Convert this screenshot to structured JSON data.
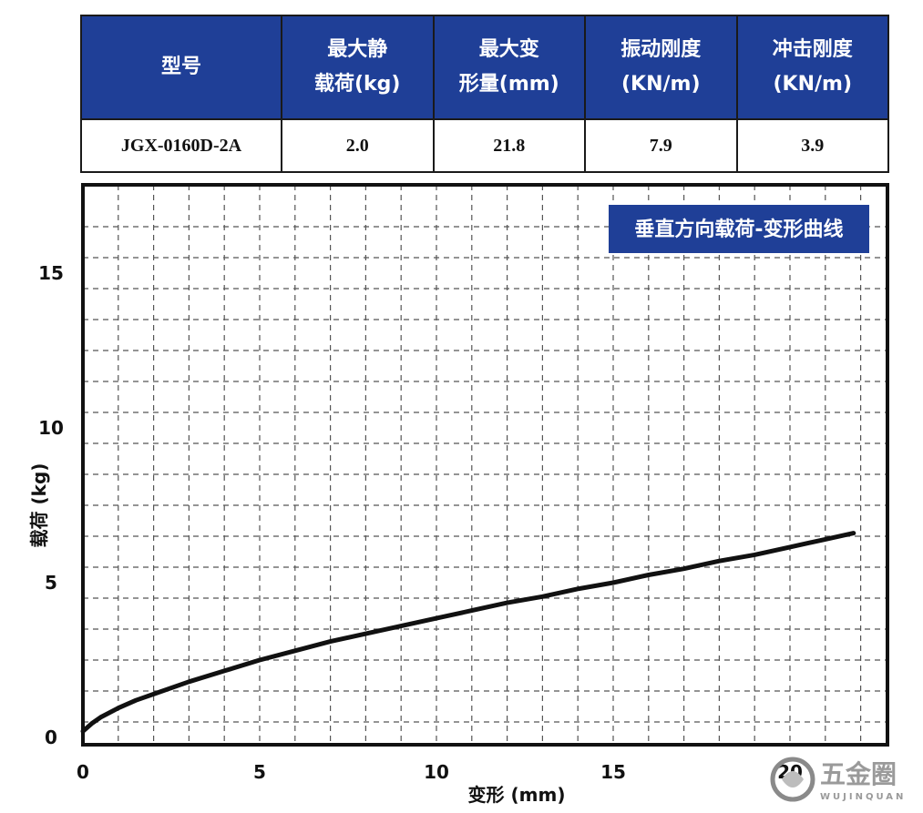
{
  "table": {
    "headers": [
      [
        "型号"
      ],
      [
        "最大静",
        "载荷(kg)"
      ],
      [
        "最大变",
        "形量(mm)"
      ],
      [
        "振动刚度",
        "(KN/m)"
      ],
      [
        "冲击刚度",
        "(KN/m)"
      ]
    ],
    "row": [
      "JGX-0160D-2A",
      "2.0",
      "21.8",
      "7.9",
      "3.9"
    ]
  },
  "chart_data": {
    "type": "line",
    "title": "垂直方向载荷-变形曲线",
    "xlabel": "变形 (mm)",
    "ylabel": "载荷 (kg)",
    "xlim": [
      0,
      22.5
    ],
    "ylim": [
      0,
      17.5
    ],
    "x_ticks": [
      0,
      5,
      10,
      15,
      20
    ],
    "y_ticks": [
      0,
      5,
      10,
      15
    ],
    "grid": true,
    "grid_style": "dashed",
    "series": [
      {
        "color": "#111111",
        "x": [
          0,
          0.25,
          0.5,
          1,
          1.5,
          2,
          3,
          4,
          5,
          6,
          7,
          8,
          9,
          10,
          11,
          12,
          13,
          14,
          15,
          16,
          17,
          18,
          19,
          20,
          21,
          21.8
        ],
        "y": [
          0.2,
          0.45,
          0.65,
          0.95,
          1.2,
          1.4,
          1.8,
          2.15,
          2.5,
          2.8,
          3.1,
          3.35,
          3.6,
          3.85,
          4.1,
          4.35,
          4.55,
          4.8,
          5.0,
          5.25,
          5.45,
          5.7,
          5.9,
          6.15,
          6.4,
          6.6
        ]
      }
    ]
  },
  "watermark": {
    "text": "五金圈",
    "subtext": "WUJINQUAN"
  }
}
